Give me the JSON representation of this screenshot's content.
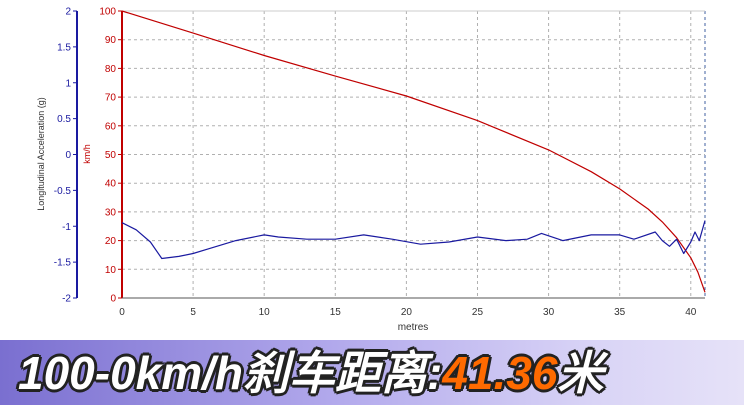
{
  "banner": {
    "label": "100-0km/h刹车距离:",
    "value": "41.36",
    "unit": "米"
  },
  "colors": {
    "speed_series": "#c00000",
    "accel_series": "#1a1aa0",
    "left_axis": "#1a1aa0",
    "right_axis": "#c00000",
    "grid": "#b0b0b0"
  },
  "chart_data": {
    "type": "line",
    "xlabel": "metres",
    "xlim": [
      0,
      41
    ],
    "x_ticks": [
      "0",
      "5",
      "10",
      "15",
      "20",
      "25",
      "30",
      "35",
      "40"
    ],
    "grid": true,
    "y_left": {
      "label": "Longitudinal Acceleration (g)",
      "lim": [
        -2,
        2
      ],
      "ticks": [
        "2",
        "1.5",
        "1",
        "0.5",
        "0",
        "-0.5",
        "-1",
        "-1.5",
        "-2"
      ]
    },
    "y_right": {
      "label": "km/h",
      "lim": [
        0,
        100
      ],
      "ticks": [
        "100",
        "90",
        "80",
        "70",
        "60",
        "50",
        "40",
        "30",
        "20",
        "10",
        "0"
      ]
    },
    "series": [
      {
        "axis": "right",
        "x": [
          0,
          5,
          10,
          15,
          20,
          25,
          30,
          33,
          35,
          37,
          38,
          39,
          40,
          40.5,
          41
        ],
        "y": [
          100,
          92.3,
          84.5,
          77.3,
          70.4,
          61.8,
          51.6,
          44,
          38,
          31,
          26.5,
          21,
          14,
          9,
          2
        ]
      },
      {
        "axis": "left",
        "x": [
          0,
          1,
          2,
          2.8,
          4,
          5,
          6,
          8,
          10,
          11,
          13,
          15,
          17,
          19,
          21,
          23,
          25,
          27,
          28.5,
          29.5,
          31,
          33,
          35,
          36,
          37.5,
          38,
          38.5,
          39,
          39.5,
          40,
          40.3,
          40.6,
          41
        ],
        "y": [
          -0.95,
          -1.05,
          -1.22,
          -1.45,
          -1.42,
          -1.38,
          -1.32,
          -1.2,
          -1.12,
          -1.15,
          -1.18,
          -1.18,
          -1.12,
          -1.18,
          -1.25,
          -1.22,
          -1.15,
          -1.2,
          -1.18,
          -1.1,
          -1.2,
          -1.12,
          -1.12,
          -1.18,
          -1.08,
          -1.2,
          -1.28,
          -1.18,
          -1.38,
          -1.22,
          -1.08,
          -1.2,
          -0.92
        ]
      }
    ]
  }
}
